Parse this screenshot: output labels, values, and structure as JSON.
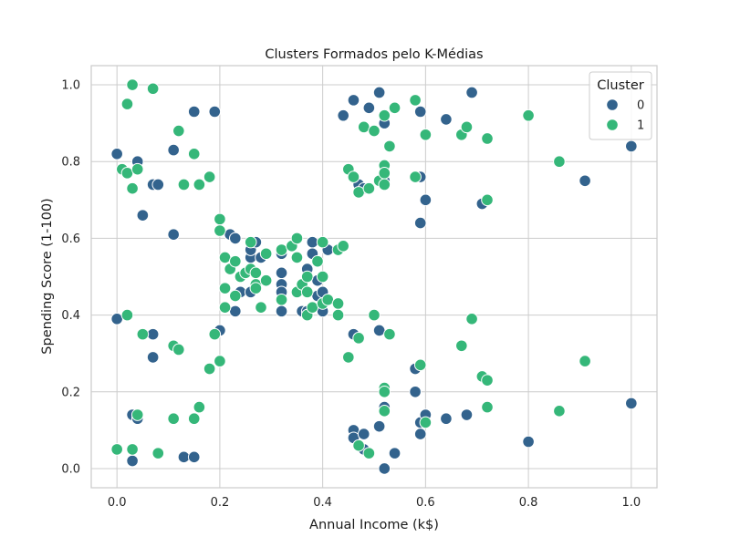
{
  "chart_data": {
    "type": "scatter",
    "title": "Clusters Formados pelo K-Médias",
    "xlabel": "Annual Income (k$)",
    "ylabel": "Spending Score (1-100)",
    "xlim": [
      -0.05,
      1.05
    ],
    "ylim": [
      -0.05,
      1.05
    ],
    "xticks": [
      0.0,
      0.2,
      0.4,
      0.6,
      0.8,
      1.0
    ],
    "yticks": [
      0.0,
      0.2,
      0.4,
      0.6,
      0.8,
      1.0
    ],
    "xtick_labels": [
      "0.0",
      "0.2",
      "0.4",
      "0.6",
      "0.8",
      "1.0"
    ],
    "ytick_labels": [
      "0.0",
      "0.2",
      "0.4",
      "0.6",
      "0.8",
      "1.0"
    ],
    "grid": true,
    "legend": {
      "title": "Cluster",
      "position": "top-right"
    },
    "series": [
      {
        "name": "0",
        "color": "#33638d",
        "points": [
          [
            0.0,
            0.39
          ],
          [
            0.0,
            0.82
          ],
          [
            0.04,
            0.8
          ],
          [
            0.05,
            0.66
          ],
          [
            0.07,
            0.74
          ],
          [
            0.08,
            0.74
          ],
          [
            0.11,
            0.83
          ],
          [
            0.11,
            0.61
          ],
          [
            0.15,
            0.93
          ],
          [
            0.19,
            0.93
          ],
          [
            0.07,
            0.35
          ],
          [
            0.07,
            0.29
          ],
          [
            0.2,
            0.36
          ],
          [
            0.03,
            0.14
          ],
          [
            0.04,
            0.13
          ],
          [
            0.03,
            0.02
          ],
          [
            0.13,
            0.03
          ],
          [
            0.15,
            0.03
          ],
          [
            0.22,
            0.61
          ],
          [
            0.23,
            0.6
          ],
          [
            0.23,
            0.41
          ],
          [
            0.24,
            0.46
          ],
          [
            0.26,
            0.46
          ],
          [
            0.26,
            0.55
          ],
          [
            0.26,
            0.57
          ],
          [
            0.27,
            0.59
          ],
          [
            0.28,
            0.55
          ],
          [
            0.32,
            0.56
          ],
          [
            0.32,
            0.51
          ],
          [
            0.32,
            0.48
          ],
          [
            0.32,
            0.46
          ],
          [
            0.32,
            0.41
          ],
          [
            0.36,
            0.41
          ],
          [
            0.37,
            0.52
          ],
          [
            0.37,
            0.41
          ],
          [
            0.38,
            0.59
          ],
          [
            0.38,
            0.56
          ],
          [
            0.39,
            0.49
          ],
          [
            0.39,
            0.45
          ],
          [
            0.4,
            0.46
          ],
          [
            0.4,
            0.41
          ],
          [
            0.41,
            0.57
          ],
          [
            0.44,
            0.92
          ],
          [
            0.46,
            0.96
          ],
          [
            0.46,
            0.76
          ],
          [
            0.47,
            0.74
          ],
          [
            0.48,
            0.73
          ],
          [
            0.49,
            0.94
          ],
          [
            0.51,
            0.98
          ],
          [
            0.52,
            0.9
          ],
          [
            0.52,
            0.75
          ],
          [
            0.59,
            0.93
          ],
          [
            0.59,
            0.76
          ],
          [
            0.6,
            0.7
          ],
          [
            0.59,
            0.64
          ],
          [
            0.64,
            0.91
          ],
          [
            0.69,
            0.98
          ],
          [
            0.71,
            0.69
          ],
          [
            0.91,
            0.75
          ],
          [
            1.0,
            0.84
          ],
          [
            0.46,
            0.35
          ],
          [
            0.51,
            0.36
          ],
          [
            0.58,
            0.26
          ],
          [
            0.58,
            0.2
          ],
          [
            0.59,
            0.12
          ],
          [
            0.6,
            0.14
          ],
          [
            0.59,
            0.09
          ],
          [
            0.64,
            0.13
          ],
          [
            0.68,
            0.14
          ],
          [
            0.46,
            0.1
          ],
          [
            0.46,
            0.08
          ],
          [
            0.48,
            0.09
          ],
          [
            0.48,
            0.05
          ],
          [
            0.51,
            0.11
          ],
          [
            0.52,
            0.16
          ],
          [
            0.52,
            0.0
          ],
          [
            0.54,
            0.04
          ],
          [
            0.8,
            0.07
          ],
          [
            1.0,
            0.17
          ]
        ]
      },
      {
        "name": "1",
        "color": "#35b779",
        "points": [
          [
            0.01,
            0.78
          ],
          [
            0.02,
            0.77
          ],
          [
            0.04,
            0.78
          ],
          [
            0.03,
            0.73
          ],
          [
            0.02,
            0.95
          ],
          [
            0.03,
            1.0
          ],
          [
            0.07,
            0.99
          ],
          [
            0.12,
            0.88
          ],
          [
            0.15,
            0.82
          ],
          [
            0.13,
            0.74
          ],
          [
            0.16,
            0.74
          ],
          [
            0.18,
            0.76
          ],
          [
            0.02,
            0.4
          ],
          [
            0.05,
            0.35
          ],
          [
            0.11,
            0.32
          ],
          [
            0.12,
            0.31
          ],
          [
            0.19,
            0.35
          ],
          [
            0.18,
            0.26
          ],
          [
            0.2,
            0.28
          ],
          [
            0.04,
            0.14
          ],
          [
            0.11,
            0.13
          ],
          [
            0.15,
            0.13
          ],
          [
            0.16,
            0.16
          ],
          [
            0.0,
            0.05
          ],
          [
            0.03,
            0.05
          ],
          [
            0.08,
            0.04
          ],
          [
            0.2,
            0.65
          ],
          [
            0.2,
            0.62
          ],
          [
            0.21,
            0.55
          ],
          [
            0.21,
            0.47
          ],
          [
            0.21,
            0.42
          ],
          [
            0.22,
            0.52
          ],
          [
            0.23,
            0.45
          ],
          [
            0.24,
            0.5
          ],
          [
            0.25,
            0.51
          ],
          [
            0.26,
            0.52
          ],
          [
            0.27,
            0.51
          ],
          [
            0.27,
            0.48
          ],
          [
            0.27,
            0.47
          ],
          [
            0.28,
            0.42
          ],
          [
            0.29,
            0.56
          ],
          [
            0.29,
            0.49
          ],
          [
            0.26,
            0.59
          ],
          [
            0.23,
            0.54
          ],
          [
            0.32,
            0.57
          ],
          [
            0.32,
            0.44
          ],
          [
            0.34,
            0.58
          ],
          [
            0.35,
            0.6
          ],
          [
            0.35,
            0.55
          ],
          [
            0.35,
            0.46
          ],
          [
            0.36,
            0.48
          ],
          [
            0.37,
            0.5
          ],
          [
            0.37,
            0.46
          ],
          [
            0.37,
            0.4
          ],
          [
            0.38,
            0.42
          ],
          [
            0.39,
            0.54
          ],
          [
            0.4,
            0.59
          ],
          [
            0.4,
            0.5
          ],
          [
            0.4,
            0.43
          ],
          [
            0.41,
            0.44
          ],
          [
            0.43,
            0.43
          ],
          [
            0.43,
            0.4
          ],
          [
            0.43,
            0.57
          ],
          [
            0.44,
            0.58
          ],
          [
            0.45,
            0.78
          ],
          [
            0.46,
            0.76
          ],
          [
            0.47,
            0.72
          ],
          [
            0.48,
            0.89
          ],
          [
            0.49,
            0.73
          ],
          [
            0.5,
            0.88
          ],
          [
            0.51,
            0.75
          ],
          [
            0.52,
            0.92
          ],
          [
            0.52,
            0.79
          ],
          [
            0.52,
            0.77
          ],
          [
            0.52,
            0.74
          ],
          [
            0.53,
            0.84
          ],
          [
            0.54,
            0.94
          ],
          [
            0.58,
            0.96
          ],
          [
            0.58,
            0.76
          ],
          [
            0.6,
            0.87
          ],
          [
            0.67,
            0.87
          ],
          [
            0.68,
            0.89
          ],
          [
            0.72,
            0.86
          ],
          [
            0.72,
            0.7
          ],
          [
            0.8,
            0.92
          ],
          [
            0.86,
            0.8
          ],
          [
            0.45,
            0.29
          ],
          [
            0.47,
            0.34
          ],
          [
            0.5,
            0.4
          ],
          [
            0.53,
            0.35
          ],
          [
            0.52,
            0.21
          ],
          [
            0.52,
            0.2
          ],
          [
            0.52,
            0.15
          ],
          [
            0.59,
            0.27
          ],
          [
            0.6,
            0.12
          ],
          [
            0.67,
            0.32
          ],
          [
            0.69,
            0.39
          ],
          [
            0.71,
            0.24
          ],
          [
            0.72,
            0.23
          ],
          [
            0.72,
            0.16
          ],
          [
            0.86,
            0.15
          ],
          [
            0.91,
            0.28
          ],
          [
            0.47,
            0.06
          ],
          [
            0.49,
            0.04
          ]
        ]
      }
    ]
  }
}
